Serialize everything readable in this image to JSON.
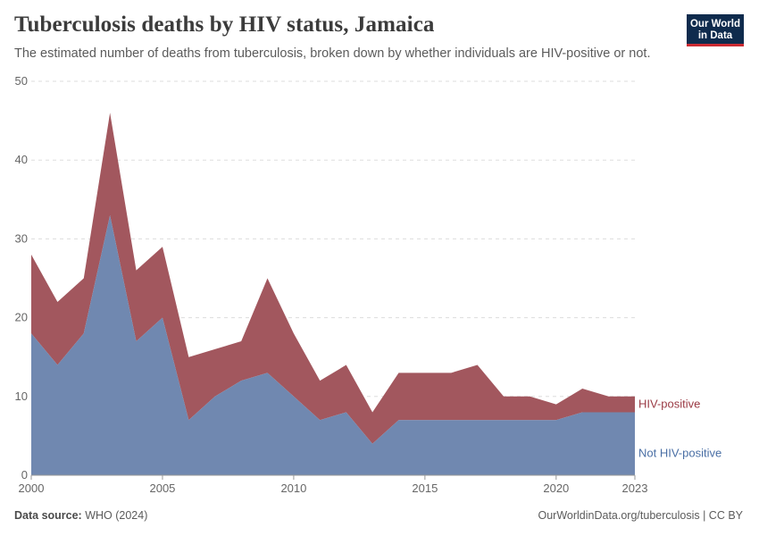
{
  "header": {
    "title": "Tuberculosis deaths by HIV status, Jamaica",
    "subtitle": "The estimated number of deaths from tuberculosis, broken down by whether individuals are HIV-positive or not."
  },
  "logo": {
    "line1": "Our World",
    "line2": "in Data"
  },
  "footer": {
    "source_label": "Data source:",
    "source_value": "WHO (2024)",
    "right": "OurWorldinData.org/tuberculosis | CC BY"
  },
  "colors": {
    "hiv_positive": "#a2575e",
    "not_hiv_positive": "#7088b0",
    "hiv_positive_label": "#9a3a44",
    "not_hiv_positive_label": "#4a6fa5"
  },
  "chart_data": {
    "type": "area",
    "stacked": true,
    "x": [
      2000,
      2001,
      2002,
      2003,
      2004,
      2005,
      2006,
      2007,
      2008,
      2009,
      2010,
      2011,
      2012,
      2013,
      2014,
      2015,
      2016,
      2017,
      2018,
      2019,
      2020,
      2021,
      2022,
      2023
    ],
    "series": [
      {
        "name": "Not HIV-positive",
        "values": [
          18,
          14,
          18,
          33,
          17,
          20,
          7,
          10,
          12,
          13,
          10,
          7,
          8,
          4,
          7,
          7,
          7,
          7,
          7,
          7,
          7,
          8,
          8,
          8
        ]
      },
      {
        "name": "HIV-positive",
        "values": [
          10,
          8,
          7,
          13,
          9,
          9,
          8,
          6,
          5,
          12,
          8,
          5,
          6,
          4,
          6,
          6,
          6,
          7,
          3,
          3,
          2,
          3,
          2,
          2
        ]
      }
    ],
    "x_ticks": [
      "2000",
      "2005",
      "2010",
      "2015",
      "2020",
      "2023"
    ],
    "y_ticks": [
      "0",
      "10",
      "20",
      "30",
      "40",
      "50"
    ],
    "ylim": [
      0,
      50
    ],
    "xlim": [
      2000,
      2023
    ],
    "grid": true,
    "legend_placement": "right-inline"
  }
}
